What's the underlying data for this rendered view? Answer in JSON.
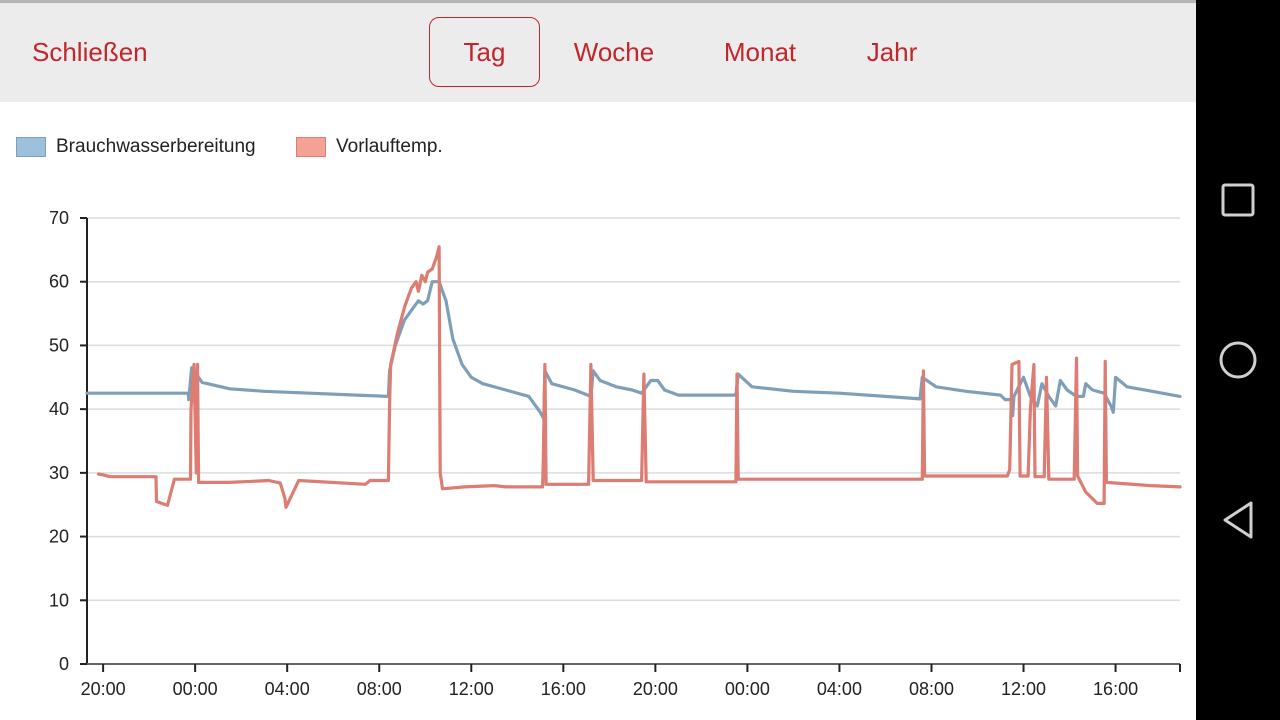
{
  "header": {
    "close_label": "Schließen",
    "tabs": [
      {
        "label": "Tag",
        "active": true
      },
      {
        "label": "Woche",
        "active": false
      },
      {
        "label": "Monat",
        "active": false
      },
      {
        "label": "Jahr",
        "active": false
      }
    ]
  },
  "colors": {
    "accent": "#c0262c",
    "series_blue": "#7f9fb8",
    "series_red": "#dc7c72",
    "legend_blue_fill": "#9dc0dc",
    "legend_red_fill": "#f4a196"
  },
  "navbar": {
    "icons": [
      "square-icon",
      "circle-icon",
      "triangle-back-icon"
    ]
  },
  "chart_data": {
    "type": "line",
    "ylim": [
      0,
      70
    ],
    "yticks": [
      "0",
      "10",
      "20",
      "30",
      "40",
      "50",
      "60",
      "70"
    ],
    "x_range_hours": [
      -0.7,
      46.8
    ],
    "xticks": [
      {
        "h": 0,
        "label": "20:00"
      },
      {
        "h": 4,
        "label": "00:00"
      },
      {
        "h": 8,
        "label": "04:00"
      },
      {
        "h": 12,
        "label": "08:00"
      },
      {
        "h": 16,
        "label": "12:00"
      },
      {
        "h": 20,
        "label": "16:00"
      },
      {
        "h": 24,
        "label": "20:00"
      },
      {
        "h": 28,
        "label": "00:00"
      },
      {
        "h": 32,
        "label": "04:00"
      },
      {
        "h": 36,
        "label": "08:00"
      },
      {
        "h": 40,
        "label": "12:00"
      },
      {
        "h": 44,
        "label": "16:00"
      }
    ],
    "grid": true,
    "legend_position": "top-left",
    "series": [
      {
        "name": "Brauchwasserbereitung",
        "points": [
          [
            -0.7,
            42.5
          ],
          [
            3.7,
            42.5
          ],
          [
            3.72,
            41.5
          ],
          [
            3.85,
            46.5
          ],
          [
            4.3,
            44.2
          ],
          [
            5.5,
            43.2
          ],
          [
            7,
            42.8
          ],
          [
            9,
            42.5
          ],
          [
            11,
            42.2
          ],
          [
            12.4,
            42
          ],
          [
            12.45,
            46
          ],
          [
            12.7,
            50
          ],
          [
            13.1,
            54
          ],
          [
            13.5,
            56
          ],
          [
            13.7,
            57
          ],
          [
            13.9,
            56.5
          ],
          [
            14.1,
            57
          ],
          [
            14.3,
            60
          ],
          [
            14.6,
            60
          ],
          [
            14.9,
            57
          ],
          [
            15.2,
            51
          ],
          [
            15.6,
            47
          ],
          [
            16.0,
            45
          ],
          [
            16.5,
            44
          ],
          [
            17.5,
            43
          ],
          [
            18.5,
            42
          ],
          [
            19.0,
            39.5
          ],
          [
            19.15,
            38.5
          ],
          [
            19.2,
            46
          ],
          [
            19.5,
            44
          ],
          [
            20.5,
            43
          ],
          [
            21.2,
            42
          ],
          [
            21.3,
            46
          ],
          [
            21.6,
            44.5
          ],
          [
            22.3,
            43.5
          ],
          [
            23.0,
            43
          ],
          [
            23.4,
            42.5
          ],
          [
            23.8,
            44.5
          ],
          [
            24.1,
            44.5
          ],
          [
            24.4,
            43
          ],
          [
            25.0,
            42.2
          ],
          [
            26.5,
            42.2
          ],
          [
            27.5,
            42.2
          ],
          [
            27.6,
            45.5
          ],
          [
            28.2,
            43.5
          ],
          [
            30,
            42.8
          ],
          [
            32,
            42.5
          ],
          [
            34,
            42
          ],
          [
            35.5,
            41.6
          ],
          [
            35.6,
            45
          ],
          [
            36.2,
            43.5
          ],
          [
            37.5,
            42.8
          ],
          [
            39.0,
            42.2
          ],
          [
            39.2,
            41.5
          ],
          [
            39.5,
            41.5
          ],
          [
            39.53,
            39
          ],
          [
            39.58,
            42
          ],
          [
            40.0,
            45
          ],
          [
            40.3,
            42
          ],
          [
            40.6,
            40.5
          ],
          [
            40.8,
            44
          ],
          [
            41.1,
            42
          ],
          [
            41.4,
            40.5
          ],
          [
            41.6,
            44.5
          ],
          [
            41.9,
            43
          ],
          [
            42.3,
            42
          ],
          [
            42.6,
            42
          ],
          [
            42.7,
            44
          ],
          [
            43.0,
            43
          ],
          [
            43.5,
            42.5
          ],
          [
            43.8,
            40.5
          ],
          [
            43.9,
            39.5
          ],
          [
            44.0,
            45
          ],
          [
            44.5,
            43.5
          ],
          [
            46.8,
            42
          ]
        ]
      },
      {
        "name": "Vorlauftemp.",
        "points": [
          [
            -0.2,
            29.8
          ],
          [
            0.1,
            29.6
          ],
          [
            0.3,
            29.4
          ],
          [
            2.3,
            29.4
          ],
          [
            2.32,
            25.5
          ],
          [
            2.8,
            24.9
          ],
          [
            3.1,
            29
          ],
          [
            3.8,
            29
          ],
          [
            3.82,
            40
          ],
          [
            3.95,
            47
          ],
          [
            4.05,
            30
          ],
          [
            4.1,
            47
          ],
          [
            4.15,
            28.5
          ],
          [
            5.5,
            28.5
          ],
          [
            7.2,
            28.8
          ],
          [
            7.7,
            28.4
          ],
          [
            7.9,
            26
          ],
          [
            7.95,
            24.6
          ],
          [
            8.5,
            28.8
          ],
          [
            11.4,
            28.2
          ],
          [
            11.6,
            28.8
          ],
          [
            12.4,
            28.8
          ],
          [
            12.45,
            41
          ],
          [
            12.5,
            47
          ],
          [
            12.8,
            52
          ],
          [
            13.1,
            56
          ],
          [
            13.4,
            59
          ],
          [
            13.6,
            60
          ],
          [
            13.7,
            58.5
          ],
          [
            13.85,
            61
          ],
          [
            14.0,
            60
          ],
          [
            14.1,
            61.5
          ],
          [
            14.3,
            62
          ],
          [
            14.5,
            64
          ],
          [
            14.6,
            65.5
          ],
          [
            14.65,
            30
          ],
          [
            14.75,
            27.5
          ],
          [
            15.7,
            27.8
          ],
          [
            17.0,
            28
          ],
          [
            17.5,
            27.8
          ],
          [
            19.1,
            27.8
          ],
          [
            19.13,
            32
          ],
          [
            19.2,
            47
          ],
          [
            19.25,
            28.2
          ],
          [
            21.1,
            28.2
          ],
          [
            21.2,
            47
          ],
          [
            21.3,
            28.8
          ],
          [
            23.4,
            28.8
          ],
          [
            23.5,
            45.5
          ],
          [
            23.6,
            28.6
          ],
          [
            27.5,
            28.6
          ],
          [
            27.55,
            45.5
          ],
          [
            27.6,
            29
          ],
          [
            35.6,
            29
          ],
          [
            35.65,
            46
          ],
          [
            35.7,
            29.5
          ],
          [
            39.3,
            29.5
          ],
          [
            39.4,
            30.5
          ],
          [
            39.5,
            47
          ],
          [
            39.8,
            47.5
          ],
          [
            39.85,
            29.5
          ],
          [
            40.2,
            29.5
          ],
          [
            40.3,
            40
          ],
          [
            40.45,
            47
          ],
          [
            40.5,
            29.4
          ],
          [
            40.9,
            29.4
          ],
          [
            41.0,
            45
          ],
          [
            41.1,
            29
          ],
          [
            41.5,
            29
          ],
          [
            42.2,
            29
          ],
          [
            42.3,
            48
          ],
          [
            42.35,
            29.5
          ],
          [
            42.7,
            27
          ],
          [
            43.2,
            25.2
          ],
          [
            43.5,
            25.2
          ],
          [
            43.55,
            47.5
          ],
          [
            43.6,
            28.5
          ],
          [
            45.5,
            28
          ],
          [
            46.8,
            27.8
          ]
        ]
      }
    ]
  }
}
